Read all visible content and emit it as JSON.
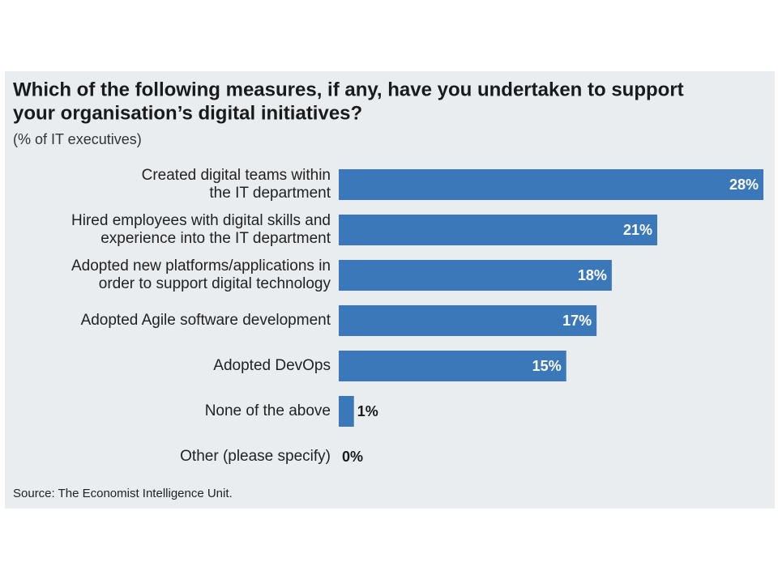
{
  "chart_data": {
    "type": "bar",
    "orientation": "horizontal",
    "title": [
      "Which of the following measures, if any, have you undertaken to support",
      "your organisation’s digital initiatives?"
    ],
    "subtitle": "(% of IT executives)",
    "categories": [
      [
        "Created digital teams within",
        "the IT department"
      ],
      [
        "Hired employees with digital skills and",
        "experience into the IT department"
      ],
      [
        "Adopted new platforms/applications in",
        "order to support digital technology"
      ],
      [
        "Adopted Agile software development"
      ],
      [
        "Adopted DevOps"
      ],
      [
        "None of the above"
      ],
      [
        "Other (please specify)"
      ]
    ],
    "values": [
      28,
      21,
      18,
      17,
      15,
      1,
      0
    ],
    "value_labels": [
      "28%",
      "21%",
      "18%",
      "17%",
      "15%",
      "1%",
      "0%"
    ],
    "color": "#3b78b9",
    "source": "Source: The Economist Intelligence Unit."
  }
}
